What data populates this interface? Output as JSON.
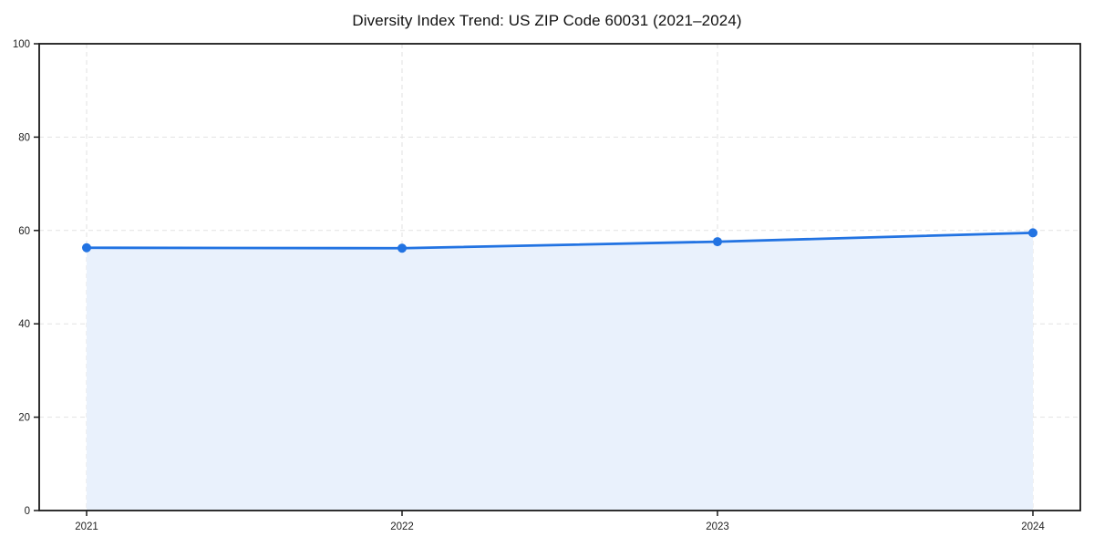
{
  "chart_data": {
    "type": "line",
    "title": "Diversity Index Trend: US ZIP Code 60031 (2021–2024)",
    "categories": [
      "2021",
      "2022",
      "2023",
      "2024"
    ],
    "series": [
      {
        "name": "Diversity Index",
        "values": [
          56.3,
          56.2,
          57.6,
          59.5
        ]
      }
    ],
    "xlabel": "",
    "ylabel": "",
    "ylim": [
      0,
      100
    ],
    "yticks": [
      0,
      20,
      40,
      60,
      80,
      100
    ],
    "grid": "dashed",
    "area_fill": true,
    "markers": true,
    "legend": "none",
    "colors": {
      "line": "#2273e2",
      "marker": "#2273e2",
      "area": "#e9f1fc",
      "grid": "#e2e2e2",
      "axis_box": "#1a1a1a",
      "tick": "#1a1a1a",
      "tick_label": "#222222",
      "background": "#ffffff"
    }
  }
}
